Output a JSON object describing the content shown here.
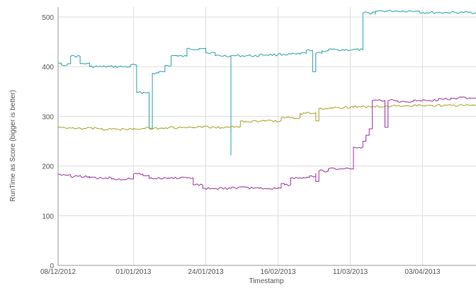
{
  "chart_data": {
    "type": "line",
    "title": "",
    "xlabel": "Timestamp",
    "ylabel": "RunTime as Score (bigger is better)",
    "x_tick_labels": [
      "08/12/2012",
      "01/01/2013",
      "24/01/2013",
      "16/02/2013",
      "11/03/2013",
      "03/04/2013"
    ],
    "y_tick_labels": [
      "0",
      "100",
      "200",
      "300",
      "400",
      "500"
    ],
    "xlim": [
      "2012-12-08",
      "2013-04-20"
    ],
    "ylim": [
      0,
      520
    ],
    "grid": true,
    "legend": "none",
    "series": [
      {
        "color": "#2aa0a8",
        "points": [
          [
            "2012-12-08",
            407
          ],
          [
            "2012-12-09",
            404
          ],
          [
            "2012-12-11",
            406
          ],
          [
            "2012-12-12",
            421
          ],
          [
            "2012-12-15",
            420
          ],
          [
            "2012-12-15",
            406
          ],
          [
            "2012-12-18",
            408
          ],
          [
            "2012-12-18",
            400
          ],
          [
            "2012-12-22",
            400
          ],
          [
            "2012-12-31",
            401
          ],
          [
            "2012-12-31",
            403
          ],
          [
            "2013-01-02",
            403
          ],
          [
            "2013-01-02",
            348
          ],
          [
            "2013-01-06",
            348
          ],
          [
            "2013-01-06",
            276
          ],
          [
            "2013-01-07",
            387
          ],
          [
            "2013-01-09",
            390
          ],
          [
            "2013-01-11",
            402
          ],
          [
            "2013-01-13",
            422
          ],
          [
            "2013-01-15",
            421
          ],
          [
            "2013-01-18",
            421
          ],
          [
            "2013-01-18",
            436
          ],
          [
            "2013-01-22",
            437
          ],
          [
            "2013-01-24",
            428
          ],
          [
            "2013-01-27",
            422
          ],
          [
            "2013-02-01",
            422
          ],
          [
            "2013-02-01",
            222
          ],
          [
            "2013-02-01",
            422
          ],
          [
            "2013-02-10",
            424
          ],
          [
            "2013-02-16",
            425
          ],
          [
            "2013-02-23",
            427
          ],
          [
            "2013-02-25",
            433
          ],
          [
            "2013-02-27",
            427
          ],
          [
            "2013-02-27",
            390
          ],
          [
            "2013-02-28",
            427
          ],
          [
            "2013-03-02",
            432
          ],
          [
            "2013-03-04",
            434
          ],
          [
            "2013-03-15",
            434
          ],
          [
            "2013-03-15",
            508
          ],
          [
            "2013-03-18",
            510
          ],
          [
            "2013-03-19",
            505
          ],
          [
            "2013-03-19",
            512
          ],
          [
            "2013-03-26",
            512
          ],
          [
            "2013-04-01",
            512
          ],
          [
            "2013-04-02",
            509
          ],
          [
            "2013-04-20",
            509
          ]
        ]
      },
      {
        "color": "#a6a226",
        "points": [
          [
            "2012-12-08",
            277
          ],
          [
            "2012-12-15",
            276
          ],
          [
            "2012-12-22",
            274
          ],
          [
            "2013-01-01",
            276
          ],
          [
            "2013-01-10",
            277
          ],
          [
            "2013-01-20",
            278
          ],
          [
            "2013-02-01",
            279
          ],
          [
            "2013-02-04",
            279
          ],
          [
            "2013-02-04",
            290
          ],
          [
            "2013-02-12",
            291
          ],
          [
            "2013-02-17",
            291
          ],
          [
            "2013-02-17",
            297
          ],
          [
            "2013-02-20",
            297
          ],
          [
            "2013-02-23",
            297
          ],
          [
            "2013-02-23",
            306
          ],
          [
            "2013-02-27",
            306
          ],
          [
            "2013-02-28",
            308
          ],
          [
            "2013-02-28",
            291
          ],
          [
            "2013-03-01",
            316
          ],
          [
            "2013-03-05",
            318
          ],
          [
            "2013-03-12",
            319
          ],
          [
            "2013-03-19",
            320
          ],
          [
            "2013-03-24",
            321
          ],
          [
            "2013-03-31",
            322
          ],
          [
            "2013-04-06",
            322
          ],
          [
            "2013-04-20",
            323
          ]
        ]
      },
      {
        "color": "#9c339c",
        "points": [
          [
            "2012-12-08",
            183
          ],
          [
            "2012-12-12",
            179
          ],
          [
            "2012-12-18",
            176
          ],
          [
            "2012-12-25",
            174
          ],
          [
            "2012-12-31",
            174
          ],
          [
            "2013-01-01",
            176
          ],
          [
            "2013-01-01",
            184
          ],
          [
            "2013-01-04",
            181
          ],
          [
            "2013-01-06",
            175
          ],
          [
            "2013-01-12",
            176
          ],
          [
            "2013-01-16",
            177
          ],
          [
            "2013-01-18",
            176
          ],
          [
            "2013-01-20",
            162
          ],
          [
            "2013-01-23",
            160
          ],
          [
            "2013-01-23",
            155
          ],
          [
            "2013-02-01",
            156
          ],
          [
            "2013-02-10",
            155
          ],
          [
            "2013-02-16",
            156
          ],
          [
            "2013-02-17",
            165
          ],
          [
            "2013-02-18",
            162
          ],
          [
            "2013-02-20",
            176
          ],
          [
            "2013-02-24",
            177
          ],
          [
            "2013-02-26",
            180
          ],
          [
            "2013-02-28",
            185
          ],
          [
            "2013-02-28",
            169
          ],
          [
            "2013-03-01",
            190
          ],
          [
            "2013-03-04",
            194
          ],
          [
            "2013-03-09",
            194
          ],
          [
            "2013-03-11",
            194
          ],
          [
            "2013-03-12",
            206
          ],
          [
            "2013-03-12",
            238
          ],
          [
            "2013-03-15",
            242
          ],
          [
            "2013-03-15",
            250
          ],
          [
            "2013-03-16",
            262
          ],
          [
            "2013-03-17",
            275
          ],
          [
            "2013-03-18",
            278
          ],
          [
            "2013-03-18",
            332
          ],
          [
            "2013-03-22",
            332
          ],
          [
            "2013-03-22",
            278
          ],
          [
            "2013-03-23",
            278
          ],
          [
            "2013-03-23",
            332
          ],
          [
            "2013-03-26",
            330
          ],
          [
            "2013-03-31",
            332
          ],
          [
            "2013-04-05",
            332
          ],
          [
            "2013-04-08",
            335
          ],
          [
            "2013-04-12",
            337
          ],
          [
            "2013-04-20",
            337
          ]
        ]
      }
    ]
  }
}
